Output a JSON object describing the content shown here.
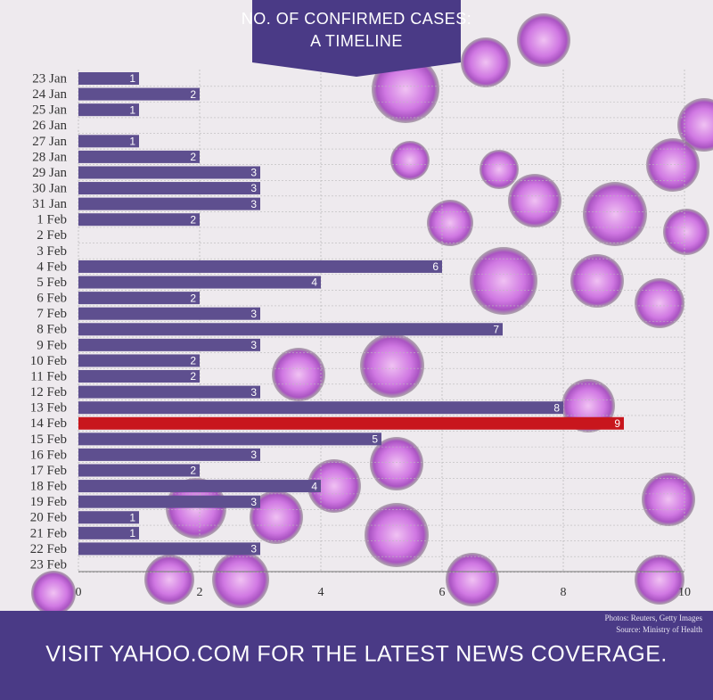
{
  "chart_data": {
    "type": "bar",
    "orientation": "horizontal",
    "title": "NO. OF CONFIRMED CASES:",
    "subtitle": "A TIMELINE",
    "categories": [
      "23 Jan",
      "24 Jan",
      "25 Jan",
      "26 Jan",
      "27 Jan",
      "28 Jan",
      "29 Jan",
      "30 Jan",
      "31 Jan",
      "1 Feb",
      "2 Feb",
      "3 Feb",
      "4 Feb",
      "5 Feb",
      "6 Feb",
      "7 Feb",
      "8 Feb",
      "9 Feb",
      "10 Feb",
      "11 Feb",
      "12 Feb",
      "13 Feb",
      "14 Feb",
      "15 Feb",
      "16 Feb",
      "17 Feb",
      "18 Feb",
      "19 Feb",
      "20 Feb",
      "21 Feb",
      "22 Feb",
      "23 Feb"
    ],
    "values": [
      1,
      2,
      1,
      null,
      1,
      2,
      3,
      3,
      3,
      2,
      null,
      null,
      6,
      4,
      2,
      3,
      7,
      3,
      2,
      2,
      3,
      8,
      9,
      5,
      3,
      2,
      4,
      3,
      1,
      1,
      3,
      null
    ],
    "color": "#5e4f8f",
    "highlight_color": "#c8161d",
    "highlight": "14 Feb",
    "xlim": [
      0,
      10
    ],
    "xticks": [
      0,
      2,
      4,
      6,
      8,
      10
    ],
    "grid": true
  },
  "footer": {
    "credits": [
      "Photos: Reuters, Getty Images",
      "Source: Ministry of Health"
    ],
    "message": "VISIT YAHOO.COM FOR THE LATEST NEWS COVERAGE."
  }
}
